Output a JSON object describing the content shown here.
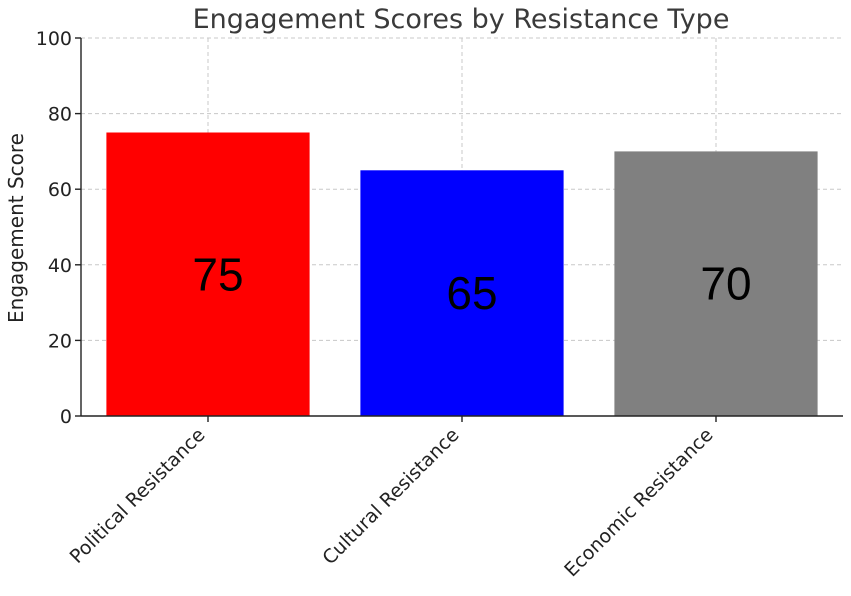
{
  "chart_data": {
    "type": "bar",
    "title": "Engagement Scores by Resistance Type",
    "xlabel": "",
    "ylabel": "Engagement Score",
    "categories": [
      "Political Resistance",
      "Cultural Resistance",
      "Economic Resistance"
    ],
    "values": [
      75,
      65,
      70
    ],
    "data_labels": [
      "75",
      "65",
      "70"
    ],
    "colors": [
      "#ff0000",
      "#0000ff",
      "#808080"
    ],
    "ylim": [
      0,
      100
    ],
    "yticks": [
      0,
      20,
      40,
      60,
      80,
      100
    ],
    "ytick_labels": [
      "0",
      "20",
      "40",
      "60",
      "80",
      "100"
    ],
    "grid": true,
    "legend": "none"
  }
}
